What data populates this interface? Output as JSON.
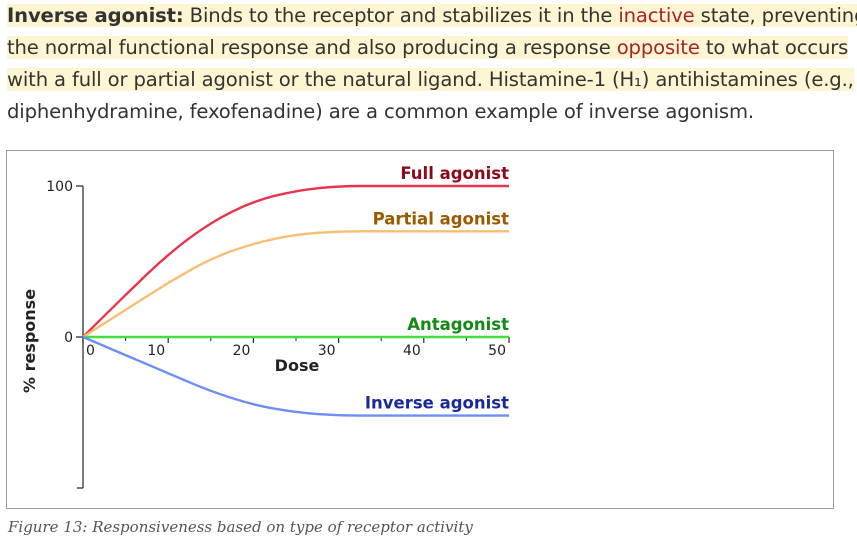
{
  "paragraph": {
    "lines": [
      {
        "label": "Inverse agonist:",
        "segments": [
          {
            "text": " Binds to the receptor and stabilizes it in the ",
            "color": "#333333"
          },
          {
            "text": "inactive",
            "color": "#a82424"
          },
          {
            "text": " state, preventing",
            "color": "#333333"
          }
        ]
      },
      {
        "segments": [
          {
            "text": "the normal functional response and also producing a response ",
            "color": "#333333"
          },
          {
            "text": "opposite",
            "color": "#a82424"
          },
          {
            "text": " to what occurs",
            "color": "#333333"
          }
        ]
      },
      {
        "segments": [
          {
            "text": "with a full or partial agonist or the natural ligand.",
            "color": "#333333"
          },
          {
            "text": " Histamine-1 (H₁) antihistamines (e.g.,",
            "color": "#333333"
          }
        ]
      },
      {
        "segments": [
          {
            "text": "diphenhydramine, fexofenadine) are a common example of inverse agonism.",
            "color": "#333333"
          }
        ]
      }
    ],
    "highlight_color": "#fef6d3"
  },
  "chart_data": {
    "type": "line",
    "xlabel": "Dose",
    "ylabel": "% response",
    "x_ticks": [
      0,
      10,
      20,
      30,
      40,
      50
    ],
    "y_ticks": [
      0,
      100
    ],
    "xlim": [
      0,
      50
    ],
    "ylim": [
      -100,
      100
    ],
    "series": [
      {
        "name": "Full agonist",
        "color": "#e8344c",
        "label_color": "#8b0a1a",
        "x": [
          0,
          5,
          10,
          15,
          20,
          25,
          30,
          35,
          40,
          45,
          50
        ],
        "y": [
          0,
          28,
          55,
          76,
          90,
          97,
          100,
          100,
          100,
          100,
          100
        ]
      },
      {
        "name": "Partial agonist",
        "color": "#f8be72",
        "label_color": "#9a5a00",
        "x": [
          0,
          5,
          10,
          15,
          20,
          25,
          30,
          35,
          40,
          45,
          50
        ],
        "y": [
          0,
          18,
          36,
          52,
          62,
          68,
          70,
          70,
          70,
          70,
          70
        ]
      },
      {
        "name": "Antagonist",
        "color": "#44dd44",
        "label_color": "#138a13",
        "x": [
          0,
          50
        ],
        "y": [
          0,
          0
        ]
      },
      {
        "name": "Inverse agonist",
        "color": "#6d8ef2",
        "label_color": "#1a2a9a",
        "x": [
          0,
          5,
          10,
          15,
          20,
          25,
          30,
          35,
          40,
          45,
          50
        ],
        "y": [
          0,
          -12,
          -24,
          -36,
          -45,
          -50,
          -52,
          -52,
          -52,
          -52,
          -52
        ]
      }
    ]
  },
  "caption": "Figure 13: Responsiveness based on type of receptor activity"
}
